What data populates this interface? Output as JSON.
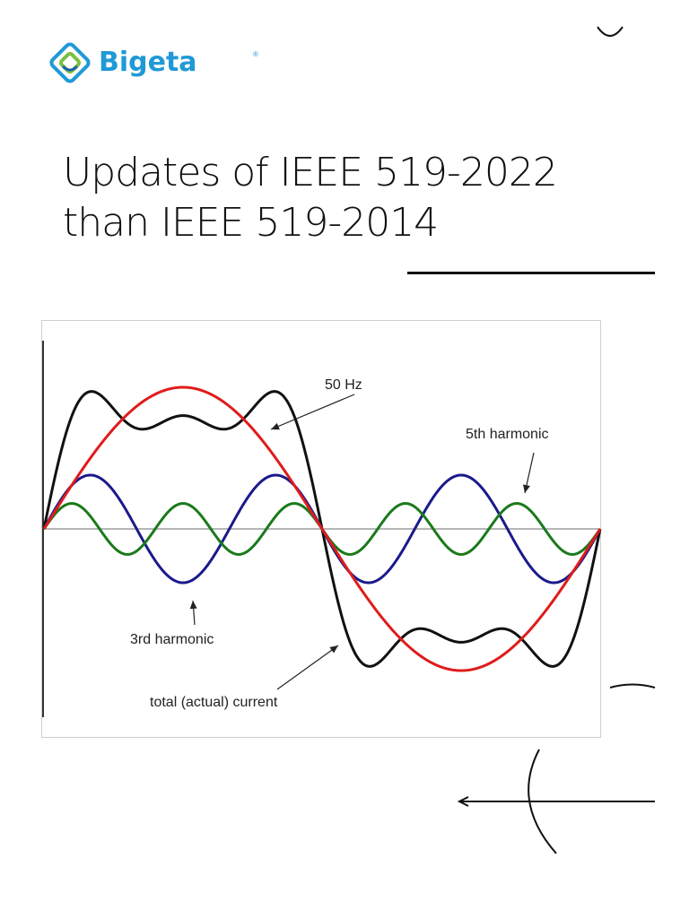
{
  "brand": {
    "name": "Bigeta",
    "registered_mark": "®",
    "colors": {
      "blue": "#1f9ad6",
      "green": "#7bc043",
      "dark_blue": "#1b5ea8"
    }
  },
  "title": {
    "lines": [
      "Updates of IEEE 519-2022",
      "than IEEE 519-2014"
    ]
  },
  "chart_data": {
    "type": "line",
    "x_domain": [
      0,
      1
    ],
    "y_domain": [
      -1.2,
      1.2
    ],
    "grid": false,
    "legend": "none",
    "series": [
      {
        "name": "50 Hz",
        "kind": "fundamental",
        "color": "#e01b1b",
        "harmonic": 1,
        "amplitude": 1.0
      },
      {
        "name": "3rd harmonic",
        "kind": "harmonic",
        "color": "#1a1a8c",
        "harmonic": 3,
        "amplitude": 0.38
      },
      {
        "name": "5th harmonic",
        "kind": "harmonic",
        "color": "#1a7a1a",
        "harmonic": 5,
        "amplitude": 0.18
      },
      {
        "name": "total (actual) current",
        "kind": "sum",
        "color": "#111111",
        "components": [
          1,
          3,
          5
        ]
      }
    ],
    "annotations": [
      {
        "text": "50 Hz",
        "target_series": "50 Hz"
      },
      {
        "text": "5th harmonic",
        "target_series": "5th harmonic"
      },
      {
        "text": "3rd harmonic",
        "target_series": "3rd harmonic"
      },
      {
        "text": "total (actual) current",
        "target_series": "total (actual) current"
      }
    ]
  }
}
